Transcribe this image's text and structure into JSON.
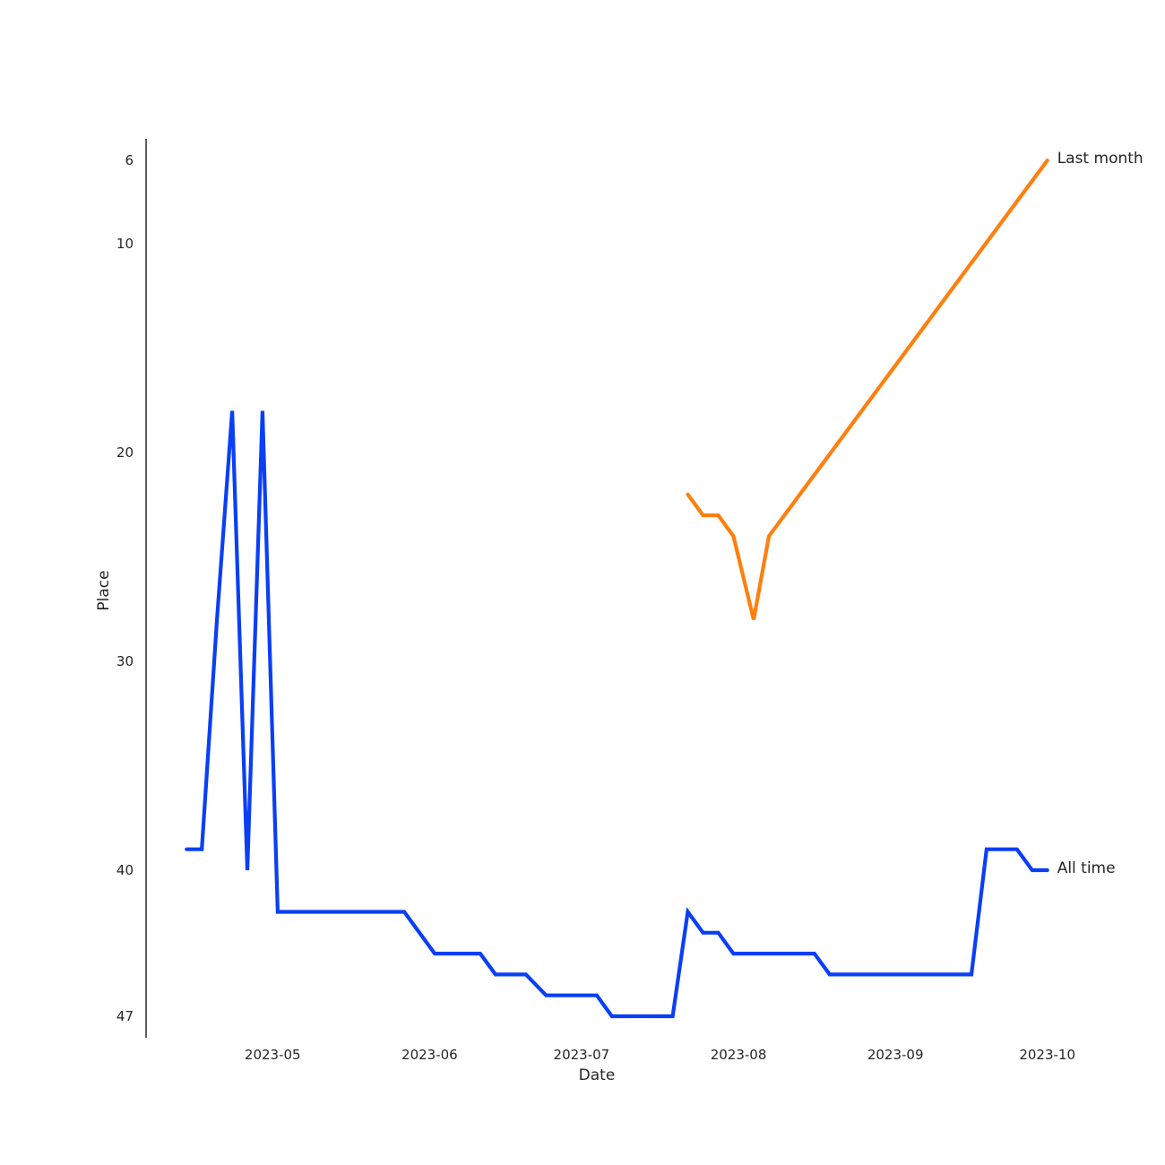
{
  "chart_data": {
    "type": "line",
    "title": "",
    "xlabel": "Date",
    "ylabel": "Place",
    "y_inverted": true,
    "ylim": [
      47,
      6
    ],
    "xlim": [
      "2023-04-06",
      "2023-10-03"
    ],
    "grid": false,
    "legend": "none",
    "x_ticks": [
      {
        "date": "2023-05-01",
        "label": "2023-05"
      },
      {
        "date": "2023-06-01",
        "label": "2023-06"
      },
      {
        "date": "2023-07-01",
        "label": "2023-07"
      },
      {
        "date": "2023-08-01",
        "label": "2023-08"
      },
      {
        "date": "2023-09-01",
        "label": "2023-09"
      },
      {
        "date": "2023-10-01",
        "label": "2023-10"
      }
    ],
    "y_ticks": [
      6,
      10,
      20,
      30,
      40,
      47
    ],
    "series": [
      {
        "name": "All time",
        "color": "#0a3ff5",
        "x": [
          "2023-04-14",
          "2023-04-17",
          "2023-04-20",
          "2023-04-23",
          "2023-04-26",
          "2023-04-29",
          "2023-05-02",
          "2023-05-05",
          "2023-05-27",
          "2023-06-02",
          "2023-06-11",
          "2023-06-14",
          "2023-06-20",
          "2023-06-24",
          "2023-07-04",
          "2023-07-07",
          "2023-07-19",
          "2023-07-22",
          "2023-07-25",
          "2023-07-28",
          "2023-07-31",
          "2023-08-16",
          "2023-08-19",
          "2023-09-16",
          "2023-09-19",
          "2023-09-25",
          "2023-09-28",
          "2023-10-01"
        ],
        "values": [
          39,
          39,
          28,
          18,
          40,
          18,
          42,
          42,
          42,
          44,
          44,
          45,
          45,
          46,
          46,
          47,
          47,
          42,
          43,
          43,
          44,
          44,
          45,
          45,
          39,
          39,
          40,
          40
        ]
      },
      {
        "name": "Last month",
        "color": "#ff7f0e",
        "x": [
          "2023-07-22",
          "2023-07-25",
          "2023-07-28",
          "2023-07-31",
          "2023-08-04",
          "2023-08-07",
          "2023-10-01"
        ],
        "values": [
          22,
          23,
          23,
          24,
          28,
          24,
          6
        ]
      }
    ]
  }
}
